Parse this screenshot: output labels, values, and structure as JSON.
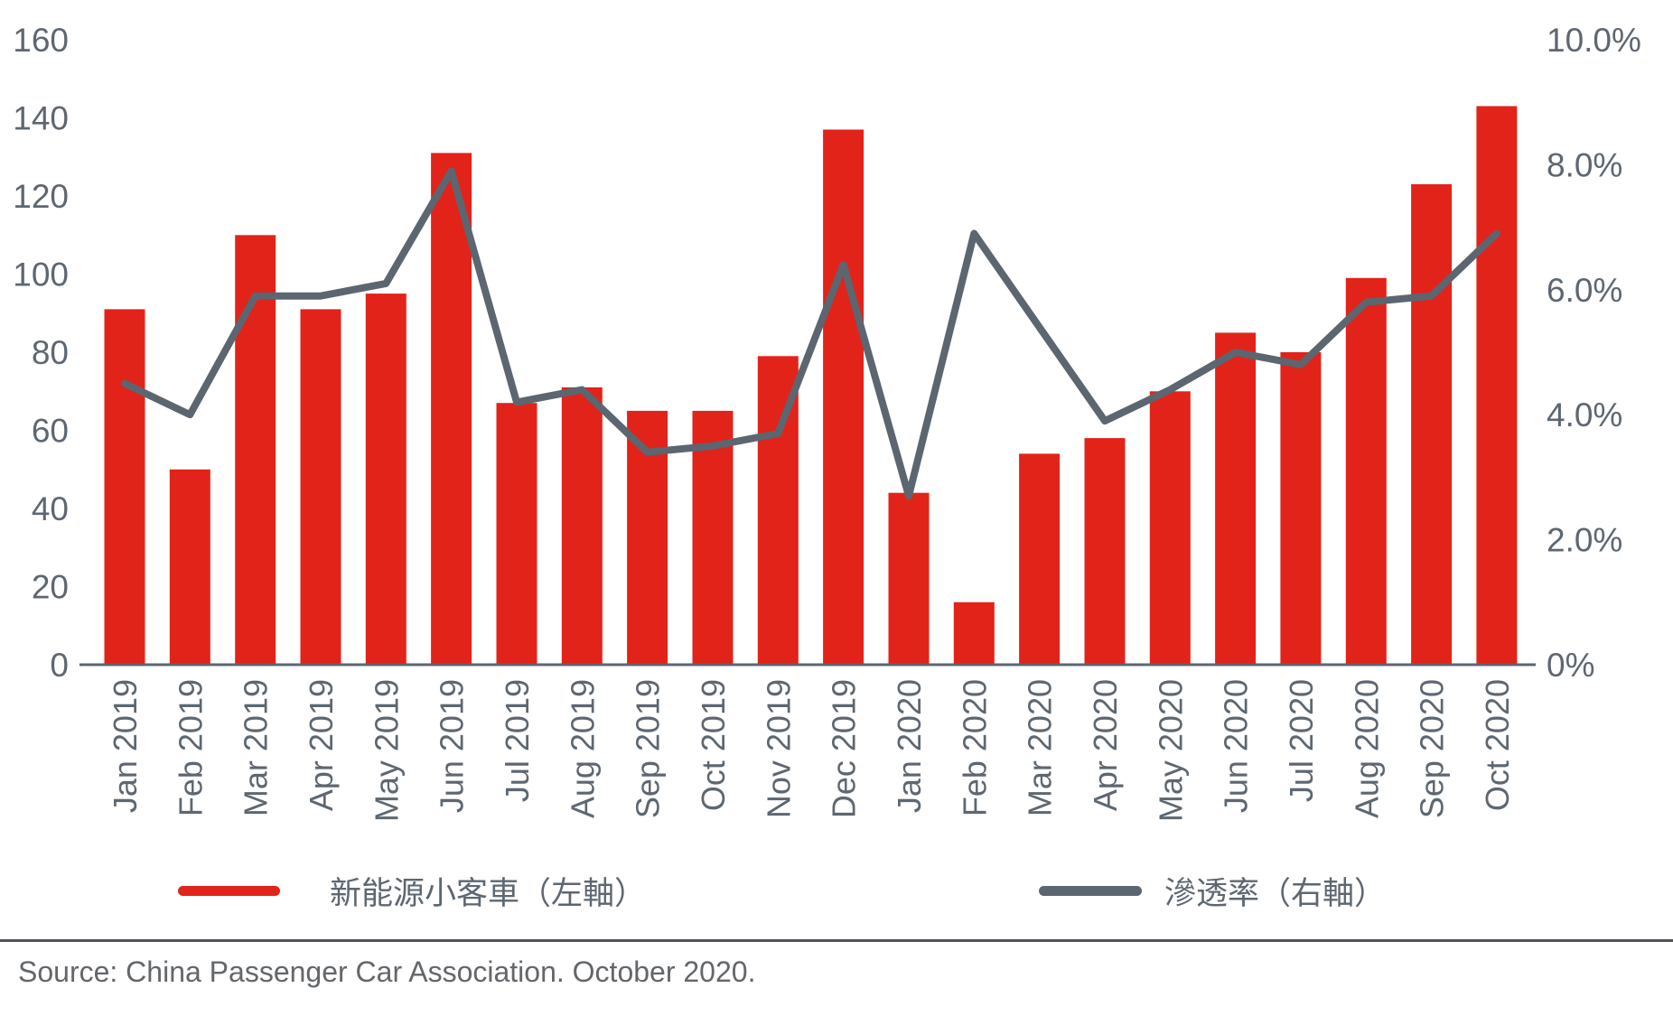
{
  "chart_data": {
    "type": "bar",
    "subtype": "combo-bar-line-dual-axis",
    "categories": [
      "Jan 2019",
      "Feb 2019",
      "Mar 2019",
      "Apr 2019",
      "May 2019",
      "Jun 2019",
      "Jul 2019",
      "Aug 2019",
      "Sep 2019",
      "Oct 2019",
      "Nov 2019",
      "Dec 2019",
      "Jan 2020",
      "Feb 2020",
      "Mar 2020",
      "Apr 2020",
      "May 2020",
      "Jun 2020",
      "Jul 2020",
      "Aug 2020",
      "Sep 2020",
      "Oct 2020"
    ],
    "series": [
      {
        "name": "新能源小客車（左軸）",
        "type": "bar",
        "axis": "left",
        "color": "#e2231a",
        "values": [
          91,
          50,
          110,
          91,
          95,
          131,
          67,
          71,
          65,
          65,
          79,
          137,
          44,
          16,
          54,
          58,
          70,
          85,
          80,
          99,
          123,
          143
        ]
      },
      {
        "name": "滲透率（右軸）",
        "type": "line",
        "axis": "right",
        "color": "#5b6670",
        "values": [
          4.5,
          4.0,
          5.9,
          5.9,
          6.1,
          7.9,
          4.2,
          4.4,
          3.4,
          3.5,
          3.7,
          6.4,
          2.7,
          6.9,
          5.4,
          3.9,
          4.4,
          5.0,
          4.8,
          5.8,
          5.9,
          6.9
        ]
      }
    ],
    "left_axis": {
      "min": 0,
      "max": 160,
      "step": 20,
      "tick_labels": [
        "0",
        "20",
        "40",
        "60",
        "80",
        "100",
        "120",
        "140",
        "160"
      ]
    },
    "right_axis": {
      "min": 0,
      "max": 10,
      "step": 2,
      "tick_labels": [
        "0%",
        "2.0%",
        "4.0%",
        "6.0%",
        "8.0%",
        "10.0%"
      ]
    },
    "title": "",
    "xlabel": "",
    "ylabel": "",
    "grid": false,
    "legend_position": "bottom"
  },
  "legend": {
    "bars_label": "新能源小客車（左軸）",
    "line_label": "滲透率（右軸）"
  },
  "source_text": "Source: China Passenger Car Association. October 2020.",
  "colors": {
    "bar_red": "#e2231a",
    "line_gray": "#5b6670",
    "axis_text": "#5d6771",
    "source_text": "#63666a",
    "footer_rule": "#4d5358"
  }
}
